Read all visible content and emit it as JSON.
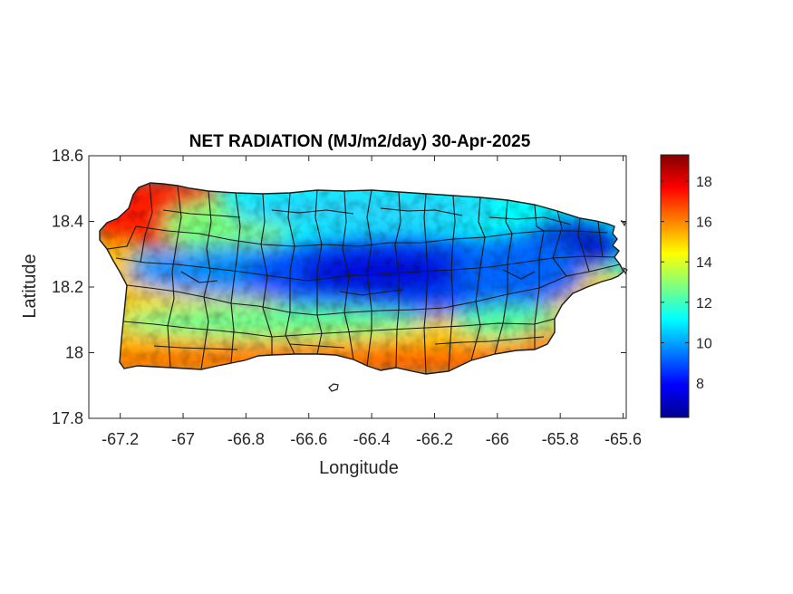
{
  "chart_data": {
    "type": "heatmap",
    "title": "NET RADIATION (MJ/m2/day) 30-Apr-2025",
    "xlabel": "Longitude",
    "ylabel": "Latitude",
    "xlim": [
      -67.3,
      -65.59
    ],
    "ylim": [
      17.8,
      18.6
    ],
    "x_ticks": [
      -67.2,
      -67,
      -66.8,
      -66.6,
      -66.4,
      -66.2,
      -66,
      -65.8,
      -65.6
    ],
    "x_tick_labels": [
      "-67.2",
      "-67",
      "-66.8",
      "-66.6",
      "-66.4",
      "-66.2",
      "-66",
      "-65.8",
      "-65.6"
    ],
    "y_ticks": [
      17.8,
      18,
      18.2,
      18.4,
      18.6
    ],
    "y_tick_labels": [
      "17.8",
      "18",
      "18.2",
      "18.4",
      "18.6"
    ],
    "colorbar": {
      "colormap": "jet",
      "range": [
        6.3,
        19.3
      ],
      "ticks": [
        8,
        10,
        12,
        14,
        16,
        18
      ],
      "tick_labels": [
        "8",
        "10",
        "12",
        "14",
        "16",
        "18"
      ]
    },
    "field_summary": [
      {
        "region": "northwest corner",
        "lon": -67.1,
        "lat": 18.45,
        "value": 18.5
      },
      {
        "region": "west coast",
        "lon": -67.2,
        "lat": 18.2,
        "value": 14.5
      },
      {
        "region": "south-west coast",
        "lon": -67.1,
        "lat": 17.97,
        "value": 16.5
      },
      {
        "region": "south coast",
        "lon": -66.4,
        "lat": 17.97,
        "value": 16.5
      },
      {
        "region": "south-east coast",
        "lon": -65.9,
        "lat": 18.03,
        "value": 16
      },
      {
        "region": "central north",
        "lon": -66.6,
        "lat": 18.4,
        "value": 11.5
      },
      {
        "region": "central interior",
        "lon": -66.45,
        "lat": 18.2,
        "value": 7.5
      },
      {
        "region": "east",
        "lon": -65.7,
        "lat": 18.32,
        "value": 7.5
      }
    ],
    "grid": false,
    "features": [
      "municipality boundaries",
      "coastline",
      "Caja de Muertos island"
    ]
  }
}
